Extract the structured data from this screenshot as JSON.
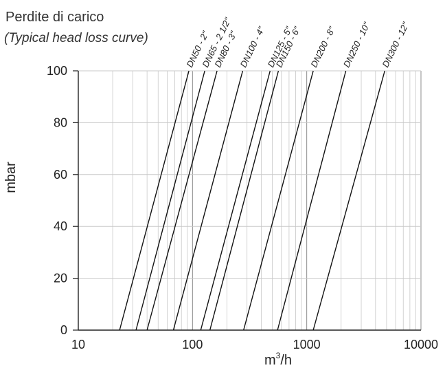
{
  "chart_data": {
    "type": "line",
    "title": "Perdite di carico",
    "subtitle": "(Typical head loss curve)",
    "xlabel": "m",
    "xlabel_sup": "3",
    "xlabel_suffix": "/h",
    "ylabel": "mbar",
    "x_scale": "log",
    "xlim": [
      10,
      10000
    ],
    "ylim": [
      0,
      100
    ],
    "x_ticks": [
      10,
      100,
      1000,
      10000
    ],
    "x_tick_labels": [
      "10",
      "100",
      "1000",
      "10000"
    ],
    "y_ticks": [
      0,
      20,
      40,
      60,
      80,
      100
    ],
    "y_tick_labels": [
      "0",
      "20",
      "40",
      "60",
      "80",
      "100"
    ],
    "grid": true,
    "series": [
      {
        "name": "DN50 - 2\"",
        "x": [
          23,
          93
        ],
        "y": [
          0,
          100
        ]
      },
      {
        "name": "DN65 - 2 1/2\"",
        "x": [
          32,
          128
        ],
        "y": [
          0,
          100
        ]
      },
      {
        "name": "DN80 - 3\"",
        "x": [
          40,
          164
        ],
        "y": [
          0,
          100
        ]
      },
      {
        "name": "DN100 - 4\"",
        "x": [
          68,
          275
        ],
        "y": [
          0,
          100
        ]
      },
      {
        "name": "DN125 - 5\"",
        "x": [
          118,
          478
        ],
        "y": [
          0,
          100
        ]
      },
      {
        "name": "DN150 - 6\"",
        "x": [
          142,
          565
        ],
        "y": [
          0,
          100
        ]
      },
      {
        "name": "DN200 - 8\"",
        "x": [
          280,
          1140
        ],
        "y": [
          0,
          100
        ]
      },
      {
        "name": "DN250 - 10\"",
        "x": [
          555,
          2200
        ],
        "y": [
          0,
          100
        ]
      },
      {
        "name": "DN300 - 12\"",
        "x": [
          1140,
          4820
        ],
        "y": [
          0,
          100
        ]
      }
    ],
    "colors": {
      "line": "#111111",
      "grid_major": "#8c8c8c",
      "grid_minor": "#c8c8c8",
      "axis": "#222222"
    }
  }
}
